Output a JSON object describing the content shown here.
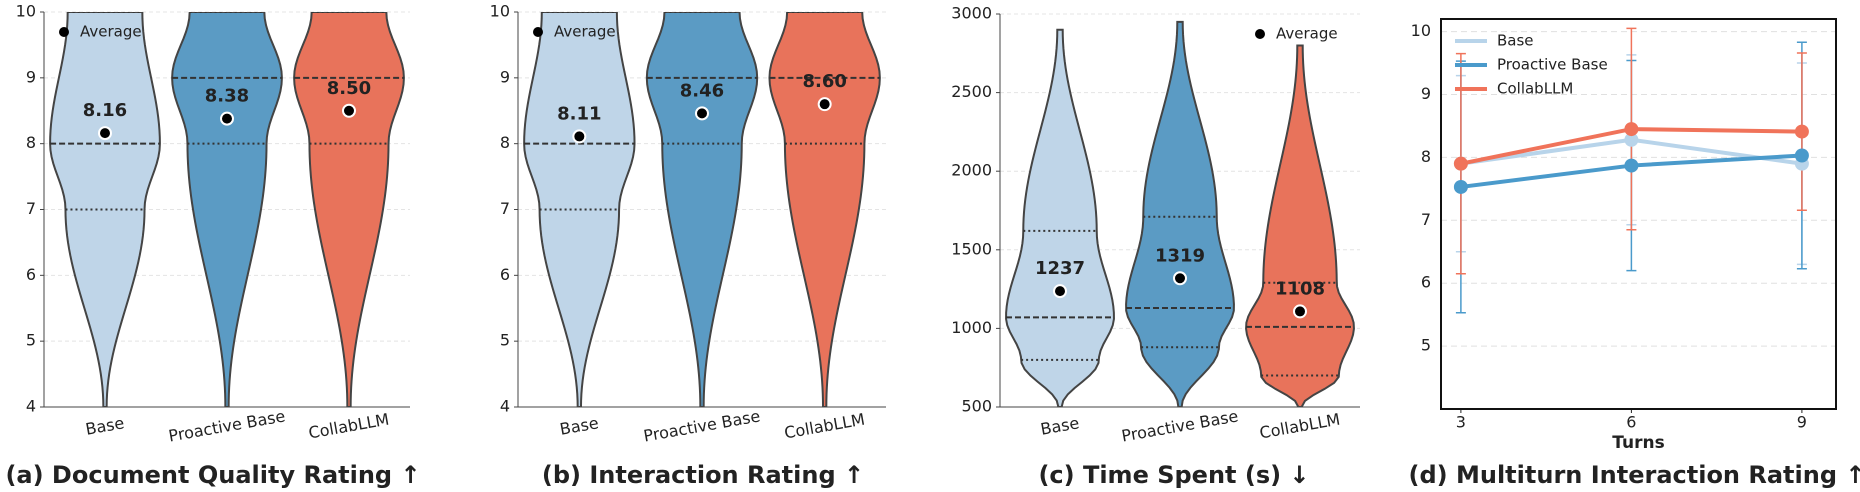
{
  "chart_data": [
    {
      "type": "violin",
      "title": "(a) Document Quality Rating ↑",
      "categories": [
        "Base",
        "Proactive Base",
        "CollabLLM"
      ],
      "colors": [
        "#bfd5e8",
        "#5b9bc4",
        "#e8735b"
      ],
      "values": [
        8.16,
        8.38,
        8.5
      ],
      "value_labels": [
        "8.16",
        "8.38",
        "8.50"
      ],
      "min": [
        4,
        4,
        4
      ],
      "q1": [
        7,
        8,
        8
      ],
      "median": [
        8,
        9,
        9
      ],
      "q3": [
        10,
        10,
        10
      ],
      "max": [
        10,
        10,
        10
      ],
      "ylim": [
        4,
        10
      ],
      "yticks": [
        4,
        5,
        6,
        7,
        8,
        9,
        10
      ],
      "grid": true,
      "legend_label": "Average",
      "legend": "upper left"
    },
    {
      "type": "violin",
      "title": "(b) Interaction Rating ↑",
      "categories": [
        "Base",
        "Proactive Base",
        "CollabLLM"
      ],
      "colors": [
        "#bfd5e8",
        "#5b9bc4",
        "#e8735b"
      ],
      "values": [
        8.11,
        8.46,
        8.6
      ],
      "value_labels": [
        "8.11",
        "8.46",
        "8.60"
      ],
      "min": [
        4,
        4,
        4
      ],
      "q1": [
        7,
        8,
        8
      ],
      "median": [
        8,
        9,
        9
      ],
      "q3": [
        10,
        10,
        10
      ],
      "max": [
        10,
        10,
        10
      ],
      "ylim": [
        4,
        10
      ],
      "yticks": [
        4,
        5,
        6,
        7,
        8,
        9,
        10
      ],
      "grid": true,
      "legend_label": "Average",
      "legend": "upper left"
    },
    {
      "type": "violin",
      "title": "(c) Time Spent (s) ↓",
      "categories": [
        "Base",
        "Proactive Base",
        "CollabLLM"
      ],
      "colors": [
        "#bfd5e8",
        "#5b9bc4",
        "#e8735b"
      ],
      "values": [
        1237,
        1319,
        1108
      ],
      "min": [
        500,
        500,
        500
      ],
      "q1": [
        800,
        880,
        700
      ],
      "median": [
        1070,
        1130,
        1010
      ],
      "q3": [
        1620,
        1710,
        1290
      ],
      "max": [
        2900,
        2950,
        2800
      ],
      "ylim": [
        500,
        3000
      ],
      "yticks": [
        500,
        1000,
        1500,
        2000,
        2500,
        3000
      ],
      "grid": true,
      "legend_label": "Average",
      "legend": "upper right"
    },
    {
      "type": "line",
      "title": "(d) Multiturn Interaction Rating ↑",
      "x_label": "Turns",
      "x": [
        3,
        6,
        9
      ],
      "xlim": [
        2.65,
        9.6
      ],
      "xticks": [
        3,
        6,
        9
      ],
      "ylim": [
        4,
        10.2
      ],
      "yticks": [
        5,
        6,
        7,
        8,
        9,
        10
      ],
      "grid": true,
      "legend": "upper left",
      "series": [
        {
          "name": "Base",
          "color": "#b8d4ea",
          "values": [
            7.9,
            8.28,
            7.9
          ],
          "errors": [
            1.4,
            1.35,
            1.6
          ]
        },
        {
          "name": "Proactive Base",
          "color": "#4a9acb",
          "values": [
            7.53,
            7.87,
            8.03
          ],
          "errors": [
            2.0,
            1.67,
            1.8
          ]
        },
        {
          "name": "CollabLLM",
          "color": "#f0735a",
          "values": [
            7.9,
            8.45,
            8.41
          ],
          "errors": [
            1.75,
            1.6,
            1.25
          ]
        }
      ]
    }
  ]
}
